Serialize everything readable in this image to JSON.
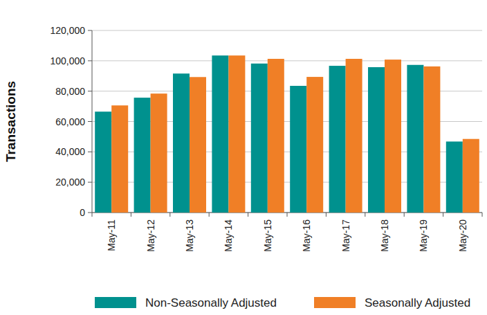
{
  "chart_data": {
    "type": "bar",
    "y_label": "Transactions",
    "categories": [
      "May-11",
      "May-12",
      "May-13",
      "May-14",
      "May-15",
      "May-16",
      "May-17",
      "May-18",
      "May-19",
      "May-20"
    ],
    "series": [
      {
        "name": "Non-Seasonally Adjusted",
        "color": "#00918e",
        "values": [
          66500,
          75700,
          91600,
          103500,
          98200,
          83500,
          96700,
          95800,
          97300,
          46800
        ]
      },
      {
        "name": "Seasonally Adjusted",
        "color": "#f07f26",
        "values": [
          70600,
          78400,
          89300,
          103500,
          101300,
          89400,
          101300,
          100800,
          96300,
          48500
        ]
      }
    ],
    "ylim": [
      0,
      120000
    ],
    "yticks": [
      0,
      {
        "value": 20000,
        "label": "20,000"
      },
      {
        "value": 40000,
        "label": "40,000"
      },
      {
        "value": 60000,
        "label": "60,000"
      },
      {
        "value": 80000,
        "label": "80,000"
      },
      {
        "value": 100000,
        "label": "100,000"
      },
      {
        "value": 120000,
        "label": "120,000"
      }
    ],
    "grid": true,
    "legend": "bottom"
  }
}
